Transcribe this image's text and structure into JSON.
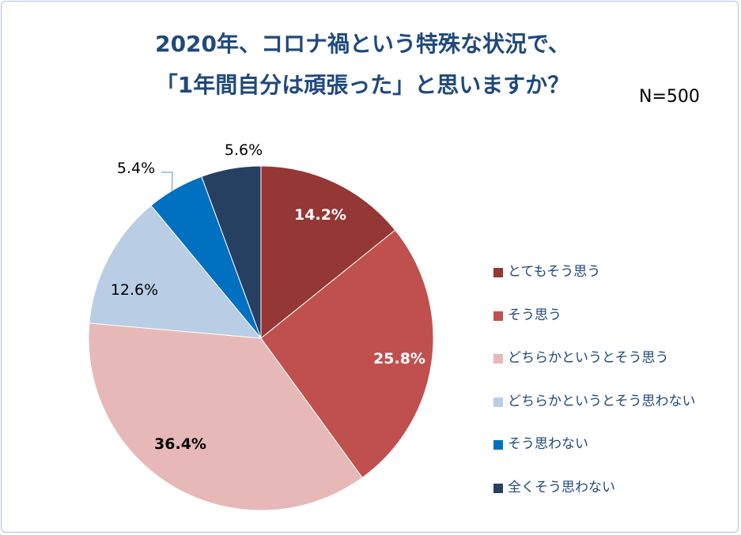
{
  "chart_data": {
    "type": "pie",
    "title": [
      "2020年、コロナ禍という特殊な状況で、",
      "「1年間自分は頑張った」と思いますか？"
    ],
    "sample_size": "N=500",
    "categories": [
      "とてもそう思う",
      "そう思う",
      "どちらかというとそう思う",
      "どちらかというとそう思わない",
      "そう思わない",
      "全くそう思わない"
    ],
    "values": [
      14.2,
      25.8,
      36.4,
      12.6,
      5.4,
      5.6
    ],
    "labels": [
      "14.2%",
      "25.8%",
      "36.4%",
      "12.6%",
      "5.4%",
      "5.6%"
    ],
    "colors": [
      "#953735",
      "#C0504D",
      "#E6B9B8",
      "#B9CDE5",
      "#0070C0",
      "#254061"
    ],
    "legend_position": "right",
    "start_angle": "top, clockwise"
  }
}
